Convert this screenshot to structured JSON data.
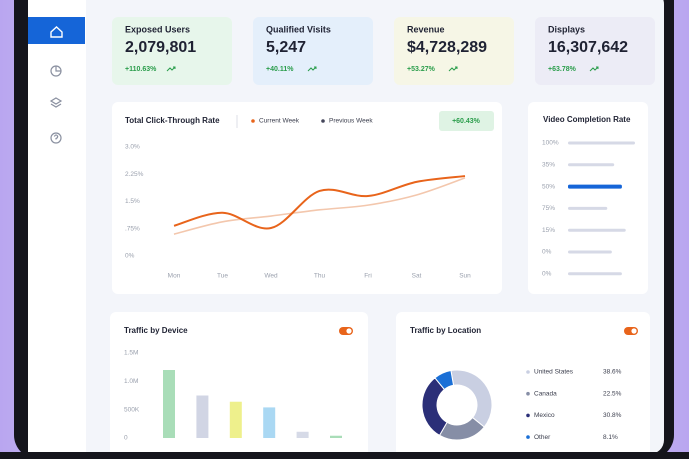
{
  "kpis": [
    {
      "label": "Exposed Users",
      "value": "2,079,801",
      "change": "+110.63%",
      "color": "#e7f6eb"
    },
    {
      "label": "Qualified Visits",
      "value": "5,247",
      "change": "+40.11%",
      "color": "#e4effb"
    },
    {
      "label": "Revenue",
      "value": "$4,728,289",
      "change": "+53.27%",
      "color": "#f6f6e6"
    },
    {
      "label": "Displays",
      "value": "16,307,642",
      "change": "+63.78%",
      "color": "#ececf6"
    }
  ],
  "chart_data": [
    {
      "type": "line",
      "title": "Total Click-Through Rate",
      "annotation": "+60.43%",
      "categories": [
        "Mon",
        "Tue",
        "Wed",
        "Thu",
        "Fri",
        "Sat",
        "Sun"
      ],
      "series": [
        {
          "name": "Current Week",
          "color": "#e8641b",
          "legend_color": "#e8641b",
          "values": [
            0.83,
            1.19,
            0.77,
            1.79,
            1.65,
            2.04,
            2.2
          ]
        },
        {
          "name": "Previous Week",
          "color": "#f3c7ad",
          "legend_color": "#44465a",
          "values": [
            0.6,
            0.94,
            1.1,
            1.27,
            1.4,
            1.68,
            2.15
          ]
        }
      ],
      "ylim": [
        0,
        3
      ],
      "yticks": [
        {
          "value": 3,
          "label": "3.0%"
        },
        {
          "value": 2.25,
          "label": "2.25%"
        },
        {
          "value": 1.5,
          "label": "1.5%"
        },
        {
          "value": 0.75,
          "label": ".75%"
        },
        {
          "value": 0,
          "label": "0%"
        }
      ],
      "grid": false
    },
    {
      "type": "hbar",
      "title": "Video Completion Rate",
      "categories": [
        "100%",
        "35%",
        "50%",
        "75%",
        "15%",
        "0%",
        "0%"
      ],
      "values": [
        87,
        60,
        70,
        51,
        75,
        57,
        70
      ],
      "colors": [
        "#d6d9e6",
        "#d6d9e6",
        "#1565d8",
        "#d6d9e6",
        "#d6d9e6",
        "#d6d9e6",
        "#d6d9e6"
      ],
      "xlim": [
        0,
        100
      ]
    },
    {
      "type": "bar",
      "title": "Traffic by Device",
      "categories": [
        null,
        null,
        null,
        null,
        null,
        null
      ],
      "values": [
        1200000,
        750000,
        640000,
        540000,
        110000,
        40000
      ],
      "colors": [
        "#a9ddb8",
        "#d1d5e4",
        "#eef08c",
        "#aad8f3",
        "#d6dae7",
        "#a9ddb8"
      ],
      "ylim": [
        0,
        1500000
      ],
      "yticks": [
        {
          "value": 1500000,
          "label": "1.5M"
        },
        {
          "value": 1000000,
          "label": "1.0M"
        },
        {
          "value": 500000,
          "label": "500K"
        },
        0
      ]
    },
    {
      "type": "pie",
      "title": "Traffic by Location",
      "donut": true,
      "categories": [
        "United States",
        "Canada",
        "Mexico",
        "Other"
      ],
      "values": [
        38.6,
        22.5,
        30.8,
        8.1
      ],
      "value_labels": [
        "38.6%",
        "22.5%",
        "30.8%",
        "8.1%"
      ],
      "colors": [
        "#c9cfe2",
        "#868ea6",
        "#2b2f78",
        "#1a6fd6"
      ]
    }
  ]
}
